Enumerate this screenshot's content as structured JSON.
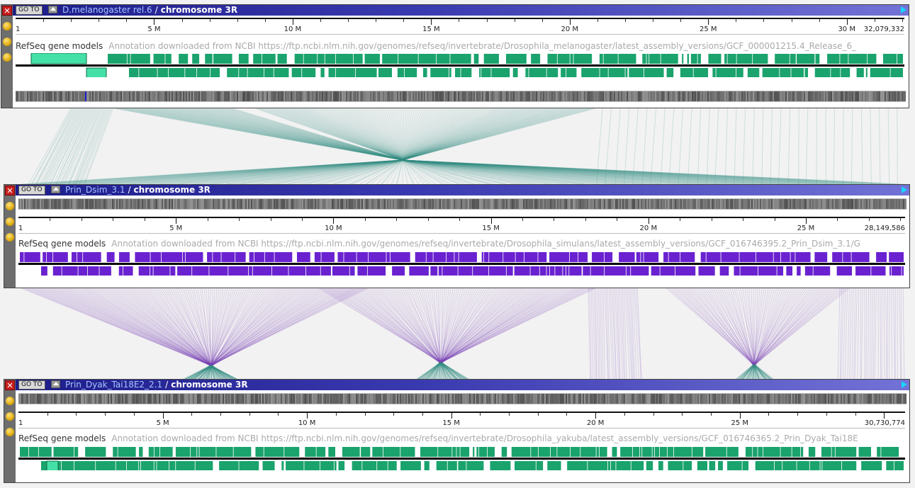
{
  "panels": [
    {
      "assembly": "D.melanogaster rel.6",
      "separator": "/",
      "chromosome": "chromosome 3R",
      "goto_label": "GO TO",
      "close_label": "✕",
      "ruler": {
        "start": "1",
        "end": "32,079,332",
        "ticks": [
          "5 M",
          "10 M",
          "15 M",
          "20 M",
          "25 M",
          "30 M"
        ]
      },
      "track": {
        "name": "RefSeq gene models",
        "description": "Annotation downloaded from NCBI https://ftp.ncbi.nlm.nih.gov/genomes/refseq/invertebrate/Drosophila_melanogaster/latest_assembly_versions/GCF_000001215.4_Release_6_"
      },
      "gene_color": "#1aa36d"
    },
    {
      "assembly": "Prin_Dsim_3.1",
      "separator": "/",
      "chromosome": "chromosome 3R",
      "goto_label": "GO TO",
      "close_label": "✕",
      "ruler": {
        "start": "1",
        "end": "28,149,586",
        "ticks": [
          "5 M",
          "10 M",
          "15 M",
          "20 M",
          "25 M"
        ]
      },
      "track": {
        "name": "RefSeq gene models",
        "description": "Annotation downloaded from NCBI https://ftp.ncbi.nlm.nih.gov/genomes/refseq/invertebrate/Drosophila_simulans/latest_assembly_versions/GCF_016746395.2_Prin_Dsim_3.1/G"
      },
      "gene_color": "#6a22d0"
    },
    {
      "assembly": "Prin_Dyak_Tai18E2_2.1",
      "separator": "/",
      "chromosome": "chromosome 3R",
      "goto_label": "GO TO",
      "close_label": "✕",
      "ruler": {
        "start": "1",
        "end": "30,730,774",
        "ticks": [
          "5 M",
          "10 M",
          "15 M",
          "20 M",
          "25 M"
        ]
      },
      "track": {
        "name": "RefSeq gene models",
        "description": "Annotation downloaded from NCBI https://ftp.ncbi.nlm.nih.gov/genomes/refseq/invertebrate/Drosophila_yakuba/latest_assembly_versions/GCF_016746365.2_Prin_Dyak_Tai18E"
      },
      "gene_color": "#1aa36d"
    }
  ],
  "colors": {
    "link_top": "#3a8f86",
    "link_mid": "#7a44b8",
    "link_bottom": "#3a8f86",
    "title_asm": "#a8c4ff"
  }
}
